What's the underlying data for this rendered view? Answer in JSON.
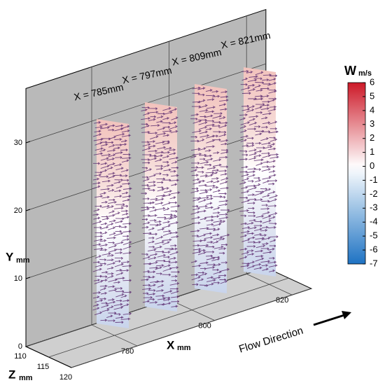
{
  "chart_data": {
    "type": "vector-field-3d",
    "plane_labels": [
      "X = 785mm",
      "X = 797mm",
      "X = 809mm",
      "X = 821mm"
    ],
    "x_axis": {
      "label": "X",
      "unit": "mm",
      "lim": [
        763,
        825
      ],
      "ticks": [
        780,
        800,
        820
      ]
    },
    "y_axis": {
      "label": "Y",
      "unit": "mm",
      "lim": [
        0,
        38
      ],
      "ticks": [
        0,
        10,
        20,
        30
      ]
    },
    "z_axis": {
      "label": "Z",
      "unit": "mm",
      "lim": [
        110,
        120
      ],
      "ticks": [
        110,
        115,
        120
      ]
    },
    "colorbar": {
      "title": "W",
      "unit": "m/s",
      "lim": [
        -7,
        6
      ],
      "ticks": [
        6,
        5,
        4,
        3,
        2,
        1,
        0,
        -1,
        -2,
        -3,
        -4,
        -5,
        -6,
        -7
      ]
    },
    "annotation": "Flow Direction",
    "grid": true
  }
}
